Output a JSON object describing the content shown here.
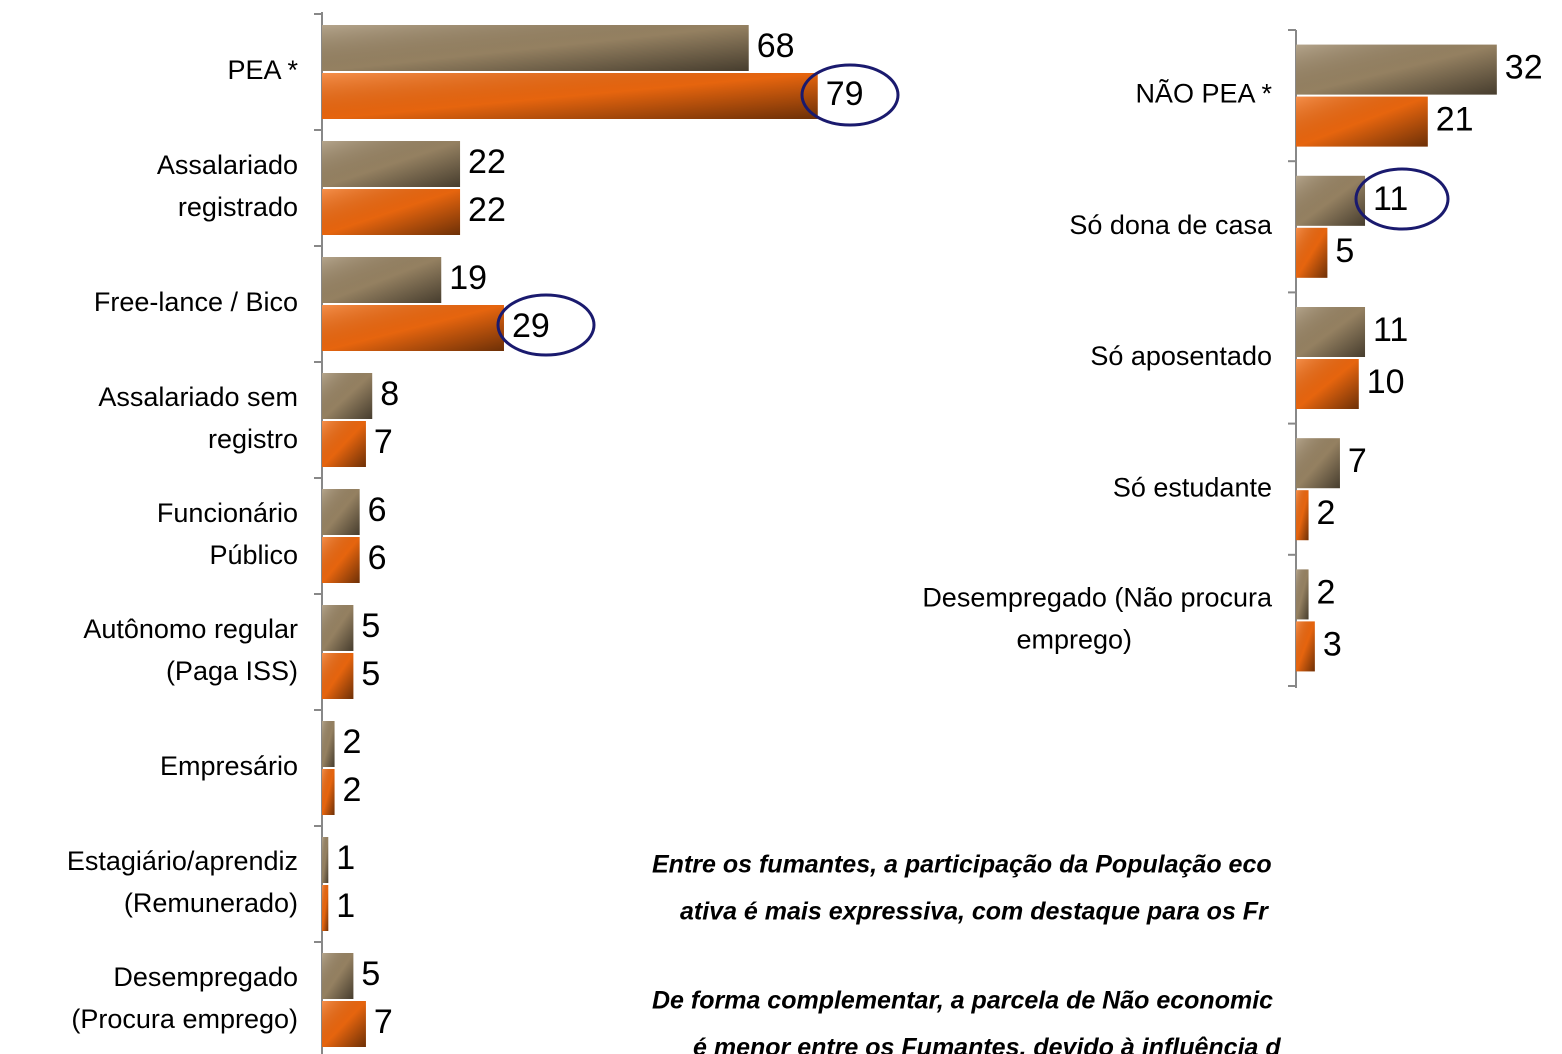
{
  "chart_data": [
    {
      "type": "bar",
      "orientation": "horizontal",
      "categories": [
        "PEA *",
        "Assalariado\nregistrado",
        "Free-lance / Bico",
        "Assalariado sem\nregistro",
        "Funcionário\nPúblico",
        "Autônomo regular\n(Paga ISS)",
        "Empresário",
        "Estagiário/aprendiz\n(Remunerado)",
        "Desempregado\n(Procura emprego)"
      ],
      "series": [
        {
          "color": "#9c8766",
          "values": [
            68,
            22,
            19,
            8,
            6,
            5,
            2,
            1,
            5
          ]
        },
        {
          "color": "#f26a0f",
          "values": [
            79,
            22,
            29,
            7,
            6,
            5,
            2,
            1,
            7
          ]
        }
      ],
      "xlim": [
        0,
        80
      ]
    },
    {
      "type": "bar",
      "orientation": "horizontal",
      "categories": [
        "NÃO PEA *",
        "Só dona de casa",
        "Só aposentado",
        "Só estudante",
        "Desempregado (Não procura\nemprego)"
      ],
      "series": [
        {
          "color": "#9c8766",
          "values": [
            32,
            11,
            11,
            7,
            2
          ]
        },
        {
          "color": "#f26a0f",
          "values": [
            21,
            5,
            10,
            2,
            3
          ]
        }
      ],
      "xlim": [
        0,
        40
      ]
    }
  ],
  "notes": [
    "Entre os fumantes, a participação da População eco",
    "ativa é mais expressiva, com destaque para os Fr",
    "De forma complementar, a parcela de Não economic",
    "é menor entre os Fumantes, devido à influência d"
  ]
}
